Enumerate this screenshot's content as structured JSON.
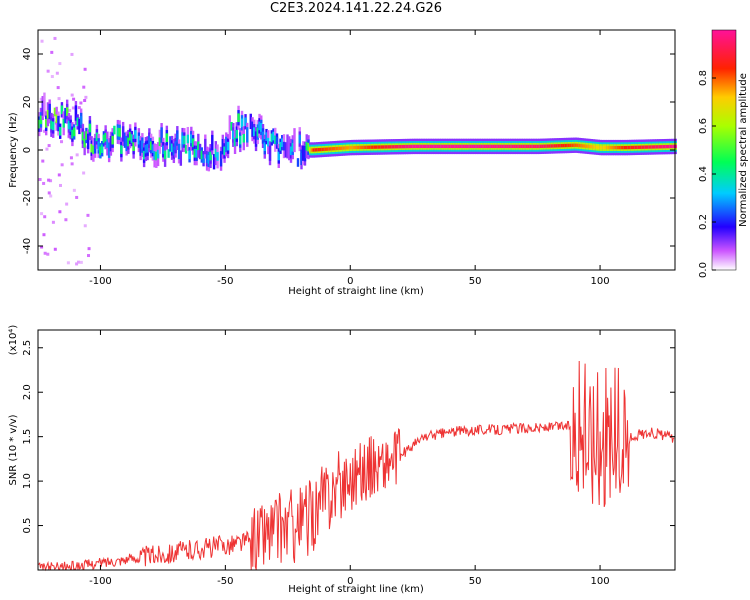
{
  "title": "C2E3.2024.141.22.24.G26",
  "colors": {
    "snr_line": "#ee3333",
    "background": "#ffffff",
    "axis": "#000000"
  },
  "chart_data": [
    {
      "type": "heatmap",
      "title": "",
      "xlabel": "Height of straight line (km)",
      "ylabel": "Frequency (Hz)",
      "xlim": [
        -125,
        130
      ],
      "ylim": [
        -50,
        50
      ],
      "x_ticks": [
        -100,
        -50,
        0,
        50,
        100
      ],
      "y_ticks": [
        -40,
        -20,
        0,
        20,
        40
      ],
      "colorbar": {
        "label": "Normalized spectral amplitude",
        "range": [
          0,
          1
        ],
        "ticks": [
          "0.0",
          "0.2",
          "0.4",
          "0.6",
          "0.8"
        ],
        "colormap": "rainbow"
      },
      "ridge": [
        {
          "x": -118,
          "y": 13,
          "a": 0.55
        },
        {
          "x": -110,
          "y": 11,
          "a": 0.45
        },
        {
          "x": -105,
          "y": 5,
          "a": 0.5
        },
        {
          "x": -95,
          "y": 4,
          "a": 0.5
        },
        {
          "x": -85,
          "y": 3,
          "a": 0.45
        },
        {
          "x": -75,
          "y": 2,
          "a": 0.45
        },
        {
          "x": -65,
          "y": 0,
          "a": 0.45
        },
        {
          "x": -55,
          "y": -2,
          "a": 0.4
        },
        {
          "x": -45,
          "y": 9,
          "a": 0.5
        },
        {
          "x": -35,
          "y": 5,
          "a": 0.45
        },
        {
          "x": -28,
          "y": -2,
          "a": 0.35
        },
        {
          "x": -20,
          "y": 0,
          "a": 0.35
        },
        {
          "x": -15,
          "y": 0,
          "a": 0.85
        },
        {
          "x": 0,
          "y": 1,
          "a": 0.75
        },
        {
          "x": 25,
          "y": 1.5,
          "a": 1.0
        },
        {
          "x": 50,
          "y": 1.5,
          "a": 1.0
        },
        {
          "x": 75,
          "y": 1.5,
          "a": 0.95
        },
        {
          "x": 90,
          "y": 2,
          "a": 0.8
        },
        {
          "x": 100,
          "y": 1,
          "a": 0.7
        },
        {
          "x": 110,
          "y": 1,
          "a": 0.85
        },
        {
          "x": 130,
          "y": 1.5,
          "a": 1.0
        }
      ]
    },
    {
      "type": "line",
      "title": "",
      "xlabel": "Height of straight line (km)",
      "ylabel": "SNR (10 * v/v)",
      "y_multiplier_label": "(x10⁴)",
      "xlim": [
        -125,
        130
      ],
      "ylim": [
        0,
        2.7
      ],
      "x_ticks": [
        -100,
        -50,
        0,
        50,
        100
      ],
      "y_ticks": [
        "0.5",
        "1.0",
        "1.5",
        "2.0",
        "2.5"
      ],
      "series": [
        {
          "x": [
            -125,
            -110,
            -100,
            -90,
            -80,
            -70,
            -60,
            -50,
            -40,
            -35,
            -30,
            -25,
            -20,
            -15,
            -10,
            -5,
            0,
            5,
            10,
            15,
            20,
            25,
            30,
            40,
            50,
            60,
            70,
            80,
            85,
            90,
            95,
            100,
            105,
            110,
            115,
            120,
            125,
            130
          ],
          "values": [
            0.02,
            0.04,
            0.08,
            0.12,
            0.16,
            0.2,
            0.24,
            0.28,
            0.33,
            0.4,
            0.45,
            0.5,
            0.52,
            0.62,
            0.82,
            0.95,
            1.05,
            1.12,
            1.18,
            1.2,
            1.28,
            1.4,
            1.5,
            1.55,
            1.58,
            1.58,
            1.6,
            1.6,
            1.62,
            1.62,
            1.5,
            1.5,
            1.5,
            1.45,
            1.52,
            1.55,
            1.52,
            1.48
          ]
        }
      ]
    }
  ]
}
